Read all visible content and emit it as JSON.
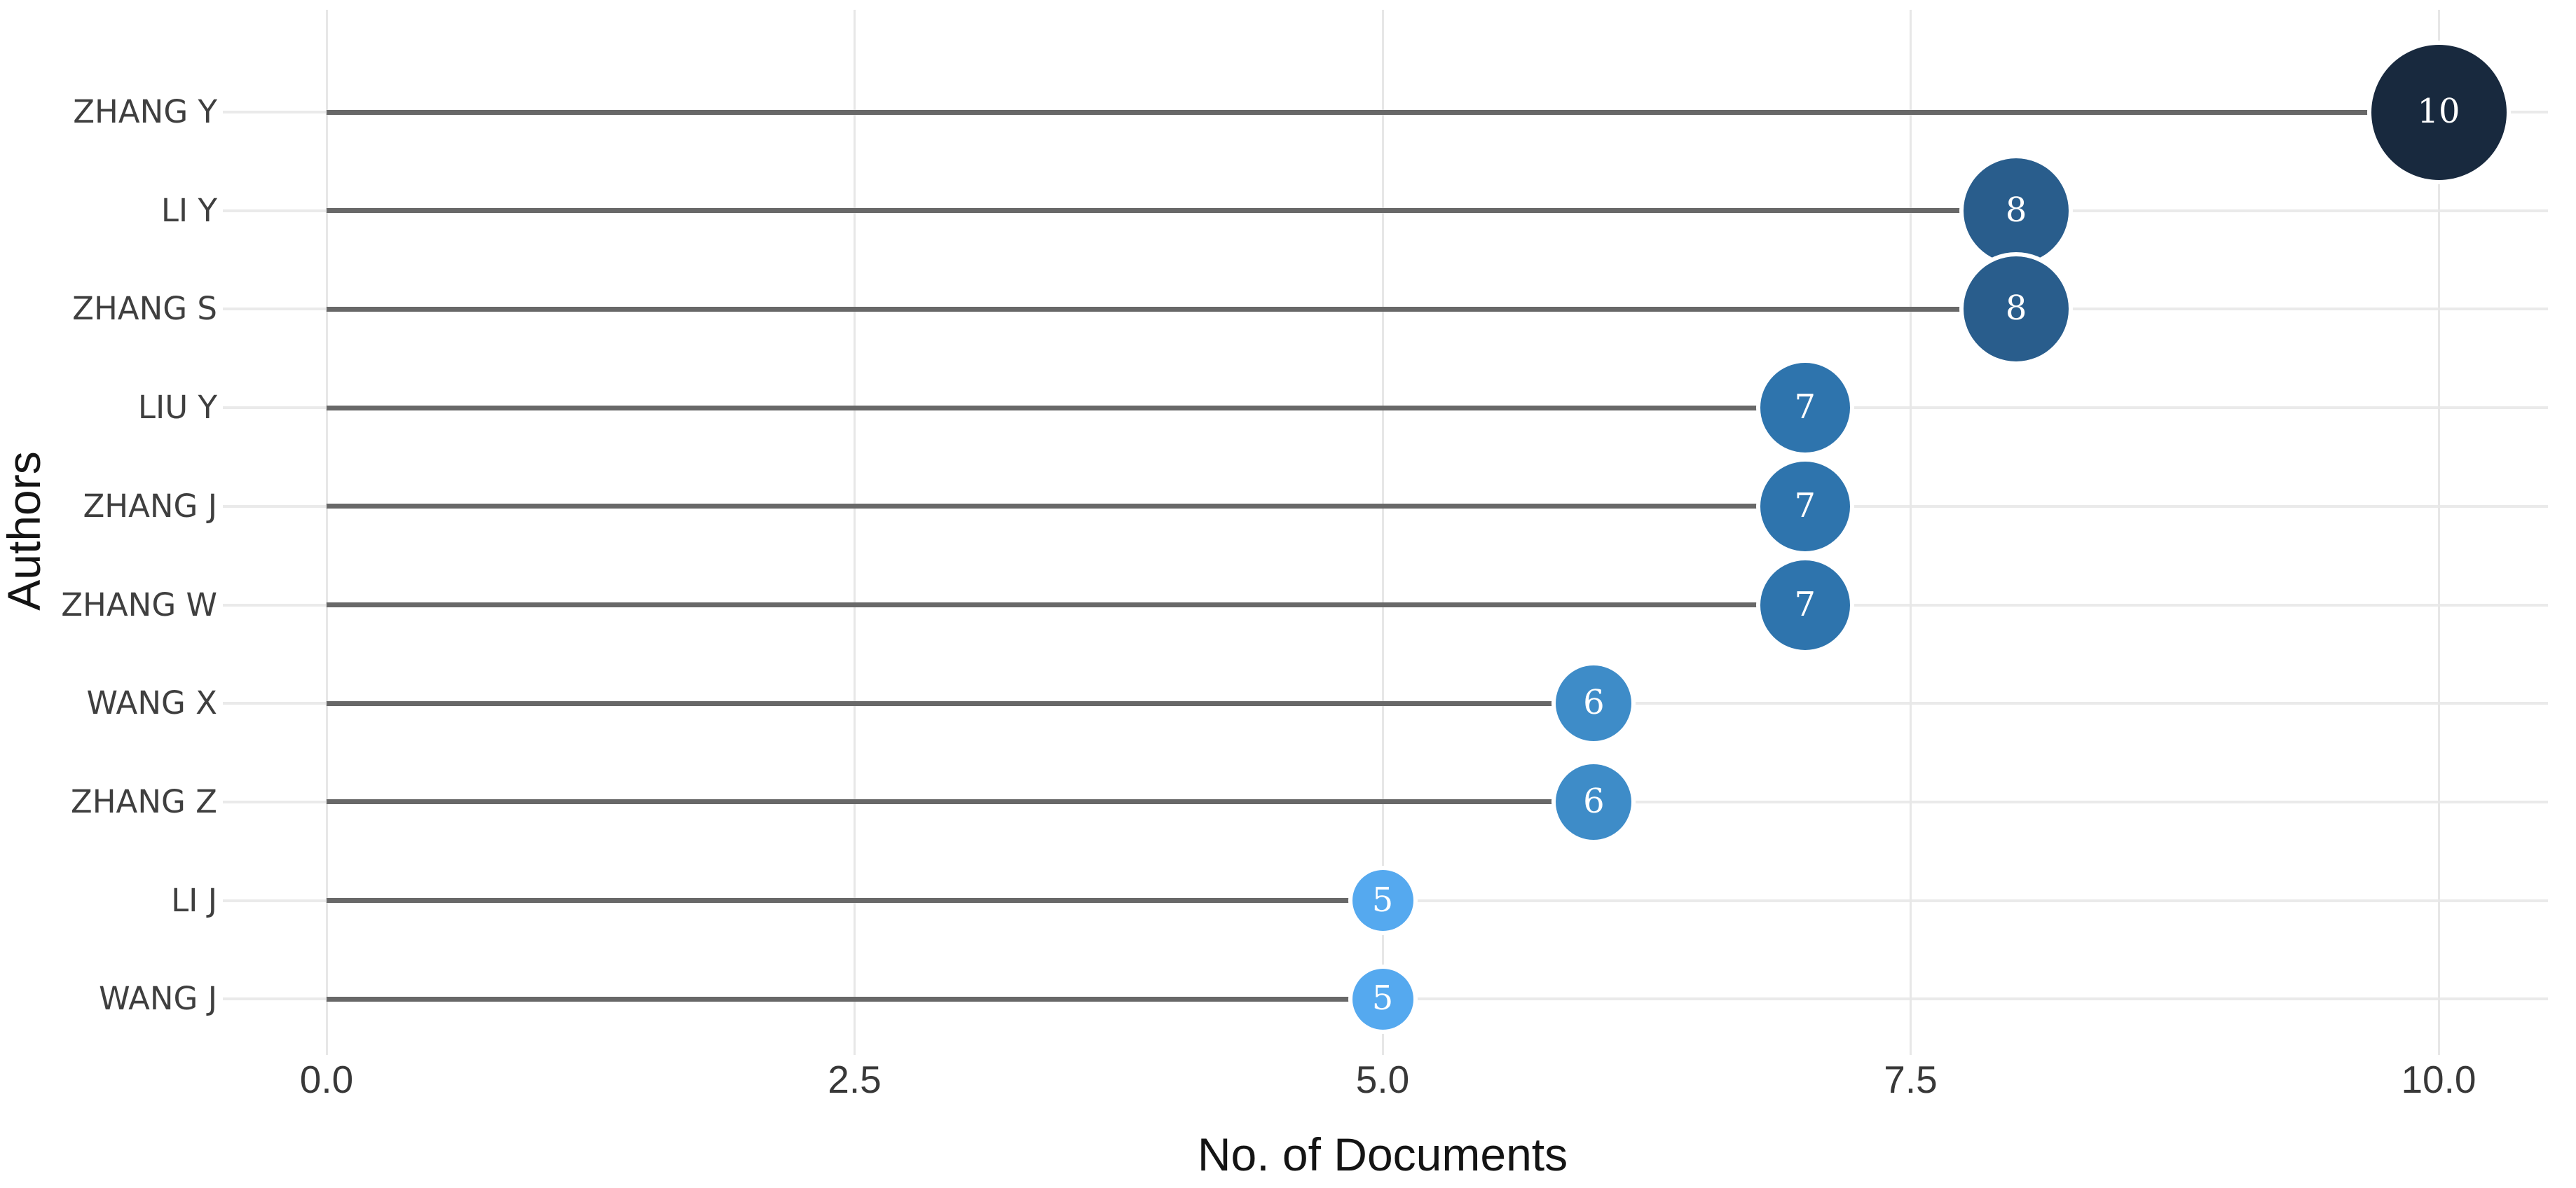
{
  "chart_data": {
    "type": "bar",
    "variant": "horizontal-lollipop-bubble",
    "title": "",
    "xlabel": "No. of Documents",
    "ylabel": "Authors",
    "categories": [
      "ZHANG Y",
      "LI Y",
      "ZHANG S",
      "LIU Y",
      "ZHANG J",
      "ZHANG W",
      "WANG X",
      "ZHANG Z",
      "LI J",
      "WANG J"
    ],
    "values": [
      10,
      8,
      8,
      7,
      7,
      7,
      6,
      6,
      5,
      5
    ],
    "points": [
      {
        "author": "ZHANG Y",
        "value": 10,
        "label": "10",
        "color": "#18293e"
      },
      {
        "author": "LI Y",
        "value": 8,
        "label": "8",
        "color": "#295d8c"
      },
      {
        "author": "ZHANG S",
        "value": 8,
        "label": "8",
        "color": "#295d8c"
      },
      {
        "author": "LIU Y",
        "value": 7,
        "label": "7",
        "color": "#2e74ad"
      },
      {
        "author": "ZHANG J",
        "value": 7,
        "label": "7",
        "color": "#2e74ad"
      },
      {
        "author": "ZHANG W",
        "value": 7,
        "label": "7",
        "color": "#2e74ad"
      },
      {
        "author": "WANG X",
        "value": 6,
        "label": "6",
        "color": "#3e8cc8"
      },
      {
        "author": "ZHANG Z",
        "value": 6,
        "label": "6",
        "color": "#3e8cc8"
      },
      {
        "author": "LI J",
        "value": 5,
        "label": "5",
        "color": "#55a9ef"
      },
      {
        "author": "WANG J",
        "value": 5,
        "label": "5",
        "color": "#55a9ef"
      }
    ],
    "x_ticks": {
      "values": [
        0,
        2.5,
        5,
        7.5,
        10
      ],
      "labels": [
        "0.0",
        "2.5",
        "5.0",
        "7.5",
        "10.0"
      ]
    },
    "xlim": [
      0,
      10.5
    ],
    "grid": true,
    "legend": false,
    "colors_by_value": {
      "5": "#55a9ef",
      "6": "#3e8cc8",
      "7": "#2e74ad",
      "8": "#295d8c",
      "10": "#18293e"
    },
    "style_colors": {
      "stem": "#686868",
      "row_line": "#eaeaea",
      "grid_line": "#e7e7e7",
      "bubble_text": "#ffffff",
      "author_label": "#3f3f3f",
      "tick_label": "#383838",
      "axis_title": "#141414",
      "background": "#ffffff"
    }
  }
}
